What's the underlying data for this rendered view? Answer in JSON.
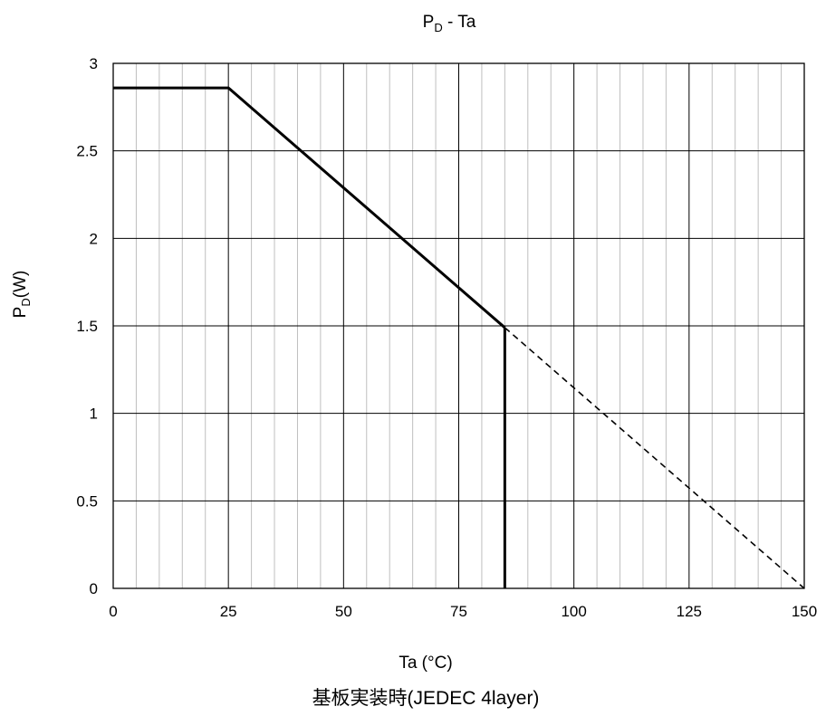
{
  "chart_data": {
    "type": "line",
    "title": "P",
    "title_sub": "D",
    "title_rest": " - Ta",
    "xlabel": "Ta (°C)",
    "ylabel_main": "P",
    "ylabel_sub": "D",
    "ylabel_rest": "(W)",
    "caption": "基板実装時(JEDEC 4layer)",
    "xlim": [
      0,
      150
    ],
    "ylim": [
      0,
      3
    ],
    "x_ticks": [
      "0",
      "25",
      "50",
      "75",
      "100",
      "125",
      "150"
    ],
    "y_ticks": [
      "0",
      "0.5",
      "1",
      "1.5",
      "2",
      "2.5",
      "3"
    ],
    "minor_x_step": 5,
    "grid": true,
    "series": [
      {
        "style": "solid",
        "x": [
          0,
          25,
          85
        ],
        "y": [
          2.86,
          2.86,
          1.49
        ]
      },
      {
        "style": "solid",
        "x": [
          85,
          85
        ],
        "y": [
          1.49,
          0
        ]
      },
      {
        "style": "dashed",
        "x": [
          85,
          150
        ],
        "y": [
          1.49,
          0
        ]
      }
    ],
    "colors": {
      "line": "#000000",
      "major_grid": "#000000",
      "minor_grid": "#bfbfbf"
    }
  }
}
